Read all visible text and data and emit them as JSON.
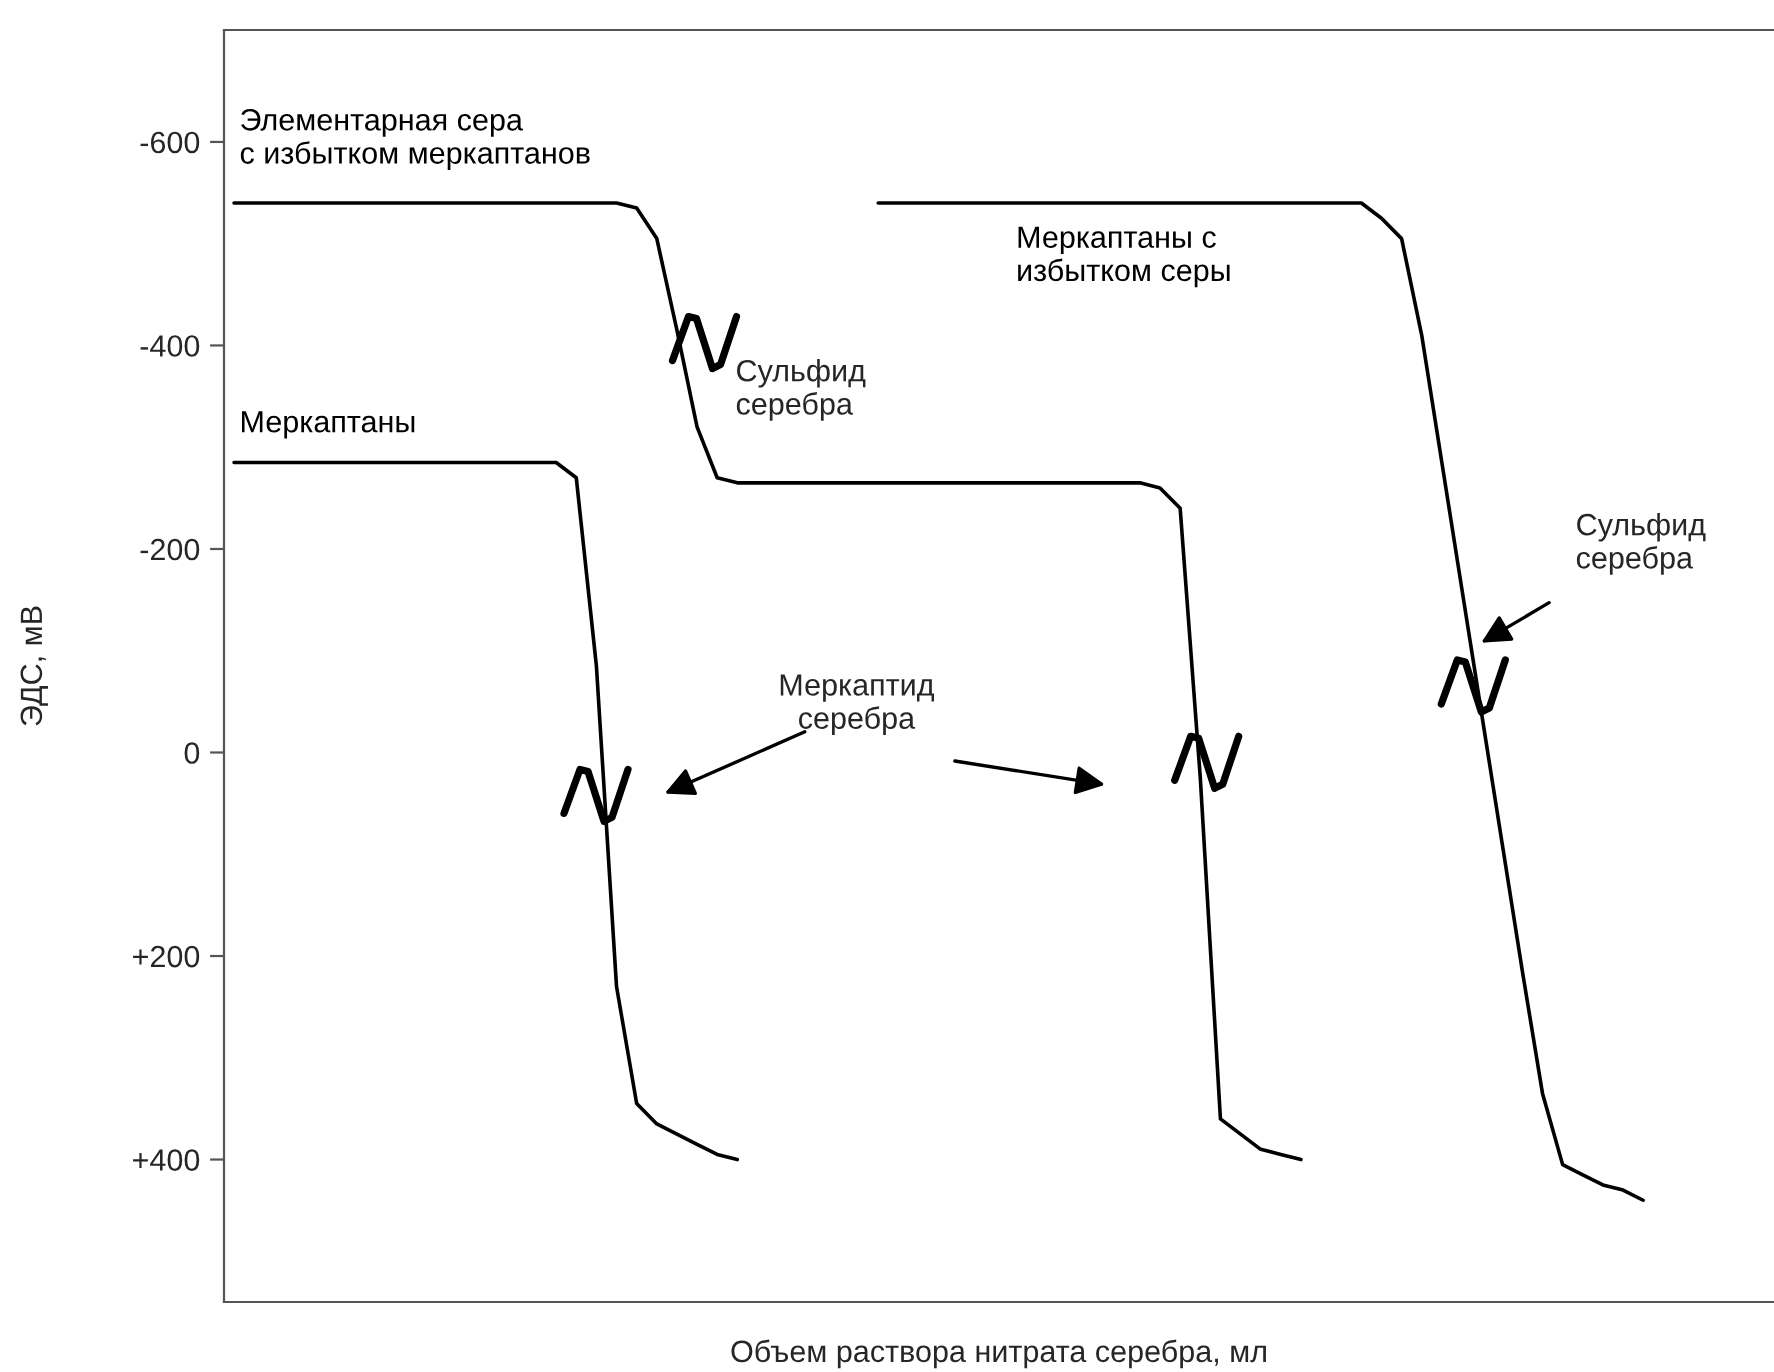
{
  "chart_data": {
    "type": "line",
    "xlabel": "Объем раствора нитрата серебра, мл",
    "ylabel": "ЭДС, мВ",
    "categories": [
      null,
      null,
      null,
      null,
      null,
      null,
      null,
      null,
      null,
      null,
      null,
      null,
      null,
      null,
      null,
      null,
      null,
      null,
      null,
      null,
      null,
      null,
      null,
      null,
      null,
      null,
      null,
      null,
      null,
      null,
      null,
      null,
      null,
      null,
      null,
      null,
      null,
      null,
      null,
      null,
      null,
      null,
      null,
      null,
      null,
      null,
      null,
      null,
      null,
      null,
      null,
      null,
      null,
      null,
      null,
      null,
      null,
      null,
      null,
      null,
      null,
      null,
      null,
      null,
      null,
      null,
      null,
      null,
      null,
      null,
      null,
      null,
      null,
      null,
      null,
      null,
      null
    ],
    "series": [
      {
        "name": "Элементарная сера\nс избытком меркаптанов",
        "color": "#000000",
        "values": [
          -540,
          -540,
          -540,
          -540,
          -540,
          -540,
          -540,
          -540,
          -540,
          -540,
          -540,
          -540,
          -540,
          -540,
          -540,
          -540,
          -540,
          -540,
          -540,
          -540,
          -535,
          -505,
          -415,
          -320,
          -270,
          -265,
          -265,
          -265,
          -265,
          -265,
          -265,
          -265,
          -265,
          -265,
          -265,
          -265,
          -265,
          -265,
          -265,
          -265,
          -265,
          -265,
          -265,
          -265,
          -265,
          -265,
          -260,
          -240,
          25,
          360,
          375,
          390,
          395,
          400,
          null,
          null,
          null,
          null,
          null,
          null,
          null,
          null,
          null,
          null,
          null,
          null,
          null,
          null,
          null,
          null,
          null,
          null,
          null,
          null,
          null,
          null,
          null
        ]
      },
      {
        "name": "Меркаптаны",
        "color": "#000000",
        "values": [
          -285,
          -285,
          -285,
          -285,
          -285,
          -285,
          -285,
          -285,
          -285,
          -285,
          -285,
          -285,
          -285,
          -285,
          -285,
          -285,
          -285,
          -270,
          -85,
          230,
          345,
          365,
          375,
          385,
          395,
          400,
          null,
          null,
          null,
          null,
          null,
          null,
          null,
          null,
          null,
          null,
          null,
          null,
          null,
          null,
          null,
          null,
          null,
          null,
          null,
          null,
          null,
          null,
          null,
          null,
          null,
          null,
          null,
          null,
          null,
          null,
          null,
          null,
          null,
          null,
          null,
          null,
          null,
          null,
          null,
          null,
          null,
          null,
          null,
          null,
          null,
          null,
          null,
          null,
          null,
          null,
          null
        ]
      },
      {
        "name": "Меркаптаны с\nизбытком серы",
        "color": "#000000",
        "values": [
          null,
          null,
          null,
          null,
          null,
          null,
          null,
          null,
          null,
          null,
          null,
          null,
          null,
          null,
          null,
          null,
          null,
          null,
          null,
          null,
          null,
          null,
          null,
          null,
          null,
          null,
          null,
          null,
          null,
          null,
          null,
          null,
          -540,
          -540,
          -540,
          -540,
          -540,
          -540,
          -540,
          -540,
          -540,
          -540,
          -540,
          -540,
          -540,
          -540,
          -540,
          -540,
          -540,
          -540,
          -540,
          -540,
          -540,
          -540,
          -540,
          -540,
          -540,
          -525,
          -505,
          -410,
          -285,
          -160,
          -35,
          90,
          215,
          335,
          405,
          415,
          425,
          430,
          440,
          null,
          null,
          null,
          null,
          null,
          null
        ]
      }
    ],
    "ylim": [
      540,
      -710
    ],
    "yticks": [
      -600,
      -400,
      -200,
      0,
      {
        "value": 200,
        "label": "+200"
      },
      {
        "value": 400,
        "label": "+400"
      }
    ],
    "annotations": [
      "Сульфид\nсеребра",
      "Меркаптид\nсеребра",
      "Сульфид\nсеребра"
    ]
  }
}
